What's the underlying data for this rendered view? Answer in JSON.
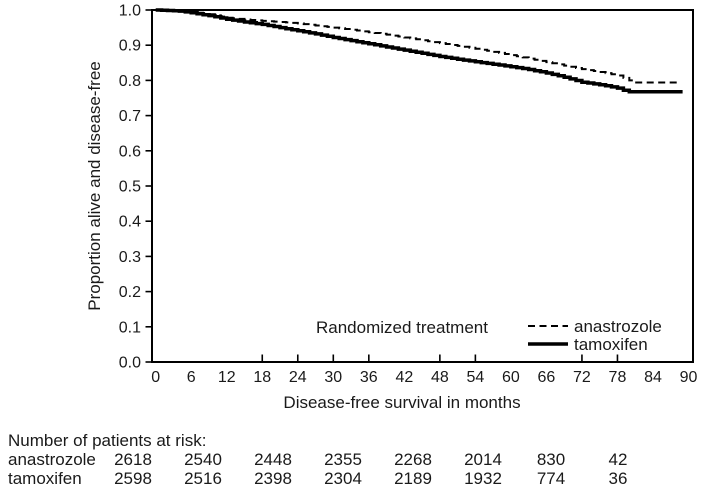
{
  "figure_colors": {
    "line": "#000000",
    "text": "#1a1a1a",
    "background": "#ffffff"
  },
  "chart_data": {
    "type": "line",
    "subtype": "kaplan-meier-step",
    "title": "",
    "xlabel": "Disease-free survival in months",
    "ylabel": "Proportion alive and disease-free",
    "xlim": [
      0,
      90.8
    ],
    "ylim": [
      0.0,
      1.0
    ],
    "x_ticks": [
      0,
      6,
      12,
      18,
      24,
      30,
      36,
      42,
      48,
      54,
      60,
      66,
      72,
      78,
      84,
      90
    ],
    "x_tick_marks": [
      18,
      24,
      30,
      36,
      48,
      54,
      72,
      78
    ],
    "y_ticks": [
      1.0,
      0.9,
      0.8,
      0.7,
      0.6,
      0.5,
      0.4,
      0.3,
      0.2,
      0.1,
      0.0
    ],
    "grid": false,
    "legend_title": "Randomized treatment",
    "legend_position": "inside-bottom-right",
    "series": [
      {
        "name": "anastrozole",
        "line_style": "dashed",
        "color": "#000000",
        "points": [
          [
            0,
            1.0
          ],
          [
            4,
            0.998
          ],
          [
            6,
            0.994
          ],
          [
            9,
            0.988
          ],
          [
            12,
            0.978
          ],
          [
            15,
            0.973
          ],
          [
            18,
            0.969
          ],
          [
            21,
            0.966
          ],
          [
            24,
            0.962
          ],
          [
            27,
            0.956
          ],
          [
            30,
            0.95
          ],
          [
            33,
            0.944
          ],
          [
            36,
            0.937
          ],
          [
            39,
            0.93
          ],
          [
            42,
            0.922
          ],
          [
            45,
            0.914
          ],
          [
            48,
            0.906
          ],
          [
            51,
            0.898
          ],
          [
            54,
            0.89
          ],
          [
            57,
            0.881
          ],
          [
            60,
            0.872
          ],
          [
            63,
            0.862
          ],
          [
            66,
            0.852
          ],
          [
            69,
            0.842
          ],
          [
            72,
            0.832
          ],
          [
            75,
            0.824
          ],
          [
            78,
            0.814
          ],
          [
            79,
            0.807
          ],
          [
            80,
            0.8
          ],
          [
            81,
            0.794
          ],
          [
            88,
            0.794
          ]
        ]
      },
      {
        "name": "tamoxifen",
        "line_style": "solid",
        "color": "#000000",
        "points": [
          [
            0,
            1.0
          ],
          [
            4,
            0.997
          ],
          [
            6,
            0.992
          ],
          [
            9,
            0.984
          ],
          [
            12,
            0.974
          ],
          [
            15,
            0.966
          ],
          [
            18,
            0.959
          ],
          [
            21,
            0.95
          ],
          [
            24,
            0.941
          ],
          [
            27,
            0.932
          ],
          [
            30,
            0.922
          ],
          [
            33,
            0.913
          ],
          [
            36,
            0.904
          ],
          [
            39,
            0.895
          ],
          [
            42,
            0.886
          ],
          [
            45,
            0.877
          ],
          [
            48,
            0.868
          ],
          [
            51,
            0.86
          ],
          [
            54,
            0.853
          ],
          [
            57,
            0.846
          ],
          [
            60,
            0.839
          ],
          [
            63,
            0.831
          ],
          [
            66,
            0.821
          ],
          [
            69,
            0.809
          ],
          [
            72,
            0.795
          ],
          [
            74,
            0.79
          ],
          [
            76,
            0.785
          ],
          [
            78,
            0.778
          ],
          [
            79,
            0.772
          ],
          [
            80,
            0.768
          ],
          [
            89,
            0.768
          ]
        ]
      }
    ],
    "number_at_risk": {
      "title": "Number of patients at risk:",
      "time_points": [
        0,
        12,
        24,
        36,
        48,
        60,
        72,
        84
      ],
      "rows": [
        {
          "label": "anastrozole",
          "counts": [
            2618,
            2540,
            2448,
            2355,
            2268,
            2014,
            830,
            42
          ]
        },
        {
          "label": "tamoxifen",
          "counts": [
            2598,
            2516,
            2398,
            2304,
            2189,
            1932,
            774,
            36
          ]
        }
      ]
    }
  }
}
